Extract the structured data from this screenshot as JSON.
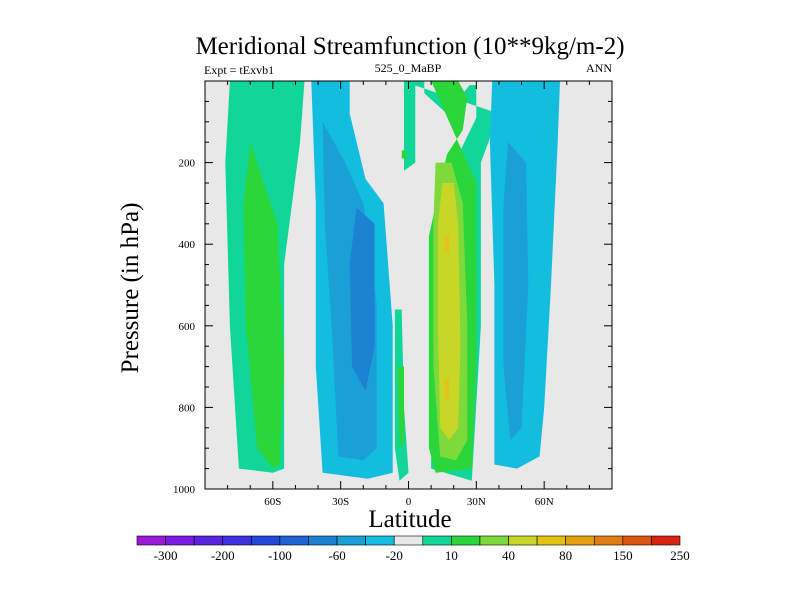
{
  "chart_data": {
    "type": "contour",
    "title": "Meridional Streamfunction (10**9kg/m-2)",
    "subtitle_left": "Expt = tExvb1",
    "subtitle_center": "525_0_MaBP",
    "subtitle_right": "ANN",
    "xlabel": "Latitude",
    "ylabel": "Pressure (in hPa)",
    "xlim": [
      -90,
      90
    ],
    "ylim": [
      1000,
      0
    ],
    "x_ticks": [
      {
        "value": -60,
        "label": "60S"
      },
      {
        "value": -30,
        "label": "30S"
      },
      {
        "value": 0,
        "label": "0"
      },
      {
        "value": 30,
        "label": "30N"
      },
      {
        "value": 60,
        "label": "60N"
      }
    ],
    "y_ticks": [
      {
        "value": 200,
        "label": "200"
      },
      {
        "value": 400,
        "label": "400"
      },
      {
        "value": 600,
        "label": "600"
      },
      {
        "value": 800,
        "label": "800"
      },
      {
        "value": 1000,
        "label": "1000"
      }
    ],
    "background_color": "#e8e8e8",
    "colorbar": {
      "colors": [
        "#9b19d8",
        "#7a1ae4",
        "#5a23e2",
        "#3a30df",
        "#2346db",
        "#1e63d6",
        "#1c82d2",
        "#1aa0d6",
        "#12bde0",
        "#e8e8e8",
        "#10d69a",
        "#2bd63b",
        "#7ed93a",
        "#c8d628",
        "#e3c413",
        "#e5a012",
        "#e17c12",
        "#dc5510",
        "#d9230d"
      ],
      "labels": [
        {
          "index": 1,
          "label": "-300"
        },
        {
          "index": 3,
          "label": "-200"
        },
        {
          "index": 5,
          "label": "-100"
        },
        {
          "index": 7,
          "label": "-60"
        },
        {
          "index": 9,
          "label": "-20"
        },
        {
          "index": 11,
          "label": "10"
        },
        {
          "index": 13,
          "label": "40"
        },
        {
          "index": 15,
          "label": "80"
        },
        {
          "index": 17,
          "label": "150"
        },
        {
          "index": 19,
          "label": "250"
        }
      ]
    },
    "cells": [
      {
        "name": "sh-ferrel-outer",
        "level": 10,
        "points": [
          [
            -79,
            0
          ],
          [
            -46,
            0
          ],
          [
            -48,
            150
          ],
          [
            -55,
            450
          ],
          [
            -55,
            950
          ],
          [
            -60,
            960
          ],
          [
            -75,
            950
          ],
          [
            -79,
            600
          ],
          [
            -81,
            200
          ]
        ]
      },
      {
        "name": "sh-ferrel-core",
        "level": 11,
        "points": [
          [
            -70,
            150
          ],
          [
            -58,
            350
          ],
          [
            -55,
            700
          ],
          [
            -57,
            940
          ],
          [
            -60,
            950
          ],
          [
            -67,
            900
          ],
          [
            -72,
            600
          ],
          [
            -73,
            300
          ]
        ]
      },
      {
        "name": "sh-hadley-outer",
        "level": 8,
        "points": [
          [
            -43,
            0
          ],
          [
            -26,
            0
          ],
          [
            -26,
            80
          ],
          [
            -19,
            240
          ],
          [
            -11,
            300
          ],
          [
            -7,
            600
          ],
          [
            -7,
            960
          ],
          [
            -18,
            975
          ],
          [
            -38,
            960
          ],
          [
            -41,
            700
          ],
          [
            -41,
            300
          ]
        ]
      },
      {
        "name": "sh-hadley-mid",
        "level": 7,
        "points": [
          [
            -38,
            100
          ],
          [
            -28,
            200
          ],
          [
            -20,
            300
          ],
          [
            -14,
            550
          ],
          [
            -14,
            900
          ],
          [
            -20,
            930
          ],
          [
            -31,
            920
          ],
          [
            -34,
            600
          ],
          [
            -37,
            350
          ]
        ]
      },
      {
        "name": "sh-hadley-core",
        "level": 6,
        "points": [
          [
            -23,
            310
          ],
          [
            -15,
            350
          ],
          [
            -15,
            650
          ],
          [
            -19,
            760
          ],
          [
            -25,
            700
          ],
          [
            -26,
            450
          ]
        ]
      },
      {
        "name": "equatorial-tongue",
        "level": 10,
        "points": [
          [
            -2,
            0
          ],
          [
            3,
            0
          ],
          [
            3,
            200
          ],
          [
            -2,
            220
          ]
        ]
      },
      {
        "name": "equatorial-near-surface",
        "level": 10,
        "points": [
          [
            -6,
            560
          ],
          [
            -3,
            560
          ],
          [
            -2,
            800
          ],
          [
            0,
            960
          ],
          [
            -4,
            980
          ],
          [
            -6,
            900
          ]
        ]
      },
      {
        "name": "equatorial-near-surface-core",
        "level": 11,
        "points": [
          [
            -5,
            700
          ],
          [
            -2,
            700
          ],
          [
            -2,
            880
          ],
          [
            -4,
            900
          ]
        ]
      },
      {
        "name": "equatorial-dot",
        "level": 11,
        "points": [
          [
            -3,
            170
          ],
          [
            -1,
            170
          ],
          [
            -1,
            190
          ],
          [
            -3,
            190
          ]
        ]
      },
      {
        "name": "nh-hadley-outer",
        "level": 10,
        "points": [
          [
            -3,
            0
          ],
          [
            7,
            0
          ],
          [
            7,
            30
          ],
          [
            17,
            80
          ],
          [
            27,
            10
          ],
          [
            30,
            10
          ],
          [
            30,
            90
          ],
          [
            23,
            170
          ],
          [
            14,
            250
          ],
          [
            10,
            400
          ],
          [
            10,
            950
          ],
          [
            28,
            980
          ],
          [
            32,
            600
          ],
          [
            32,
            200
          ],
          [
            40,
            80
          ]
        ]
      },
      {
        "name": "nh-hadley-mid",
        "level": 11,
        "points": [
          [
            10,
            0
          ],
          [
            22,
            0
          ],
          [
            26,
            40
          ],
          [
            24,
            120
          ],
          [
            17,
            180
          ],
          [
            9,
            380
          ],
          [
            9,
            900
          ],
          [
            12,
            960
          ],
          [
            28,
            950
          ],
          [
            30,
            700
          ],
          [
            30,
            250
          ]
        ]
      },
      {
        "name": "nh-hadley-inner",
        "level": 12,
        "points": [
          [
            12,
            200
          ],
          [
            19,
            200
          ],
          [
            24,
            300
          ],
          [
            26,
            600
          ],
          [
            26,
            880
          ],
          [
            21,
            930
          ],
          [
            14,
            920
          ],
          [
            11,
            700
          ],
          [
            11,
            350
          ]
        ]
      },
      {
        "name": "nh-hadley-core",
        "level": 13,
        "points": [
          [
            15,
            250
          ],
          [
            20,
            250
          ],
          [
            22,
            350
          ],
          [
            23,
            650
          ],
          [
            22,
            850
          ],
          [
            18,
            880
          ],
          [
            14,
            850
          ],
          [
            13,
            600
          ],
          [
            13,
            350
          ]
        ]
      },
      {
        "name": "nh-hadley-peak",
        "level": 14,
        "points": [
          [
            16,
            380
          ],
          [
            18,
            380
          ],
          [
            18,
            420
          ],
          [
            16,
            420
          ]
        ]
      },
      {
        "name": "nh-hadley-peak-low",
        "level": 14,
        "points": [
          [
            16,
            730
          ],
          [
            18,
            730
          ],
          [
            18,
            780
          ],
          [
            16,
            780
          ]
        ]
      },
      {
        "name": "nh-ferrel-outer",
        "level": 8,
        "points": [
          [
            37,
            0
          ],
          [
            67,
            0
          ],
          [
            66,
            150
          ],
          [
            63,
            500
          ],
          [
            60,
            800
          ],
          [
            58,
            920
          ],
          [
            48,
            950
          ],
          [
            38,
            940
          ],
          [
            38,
            500
          ],
          [
            36,
            150
          ]
        ]
      },
      {
        "name": "nh-ferrel-core",
        "level": 7,
        "points": [
          [
            44,
            150
          ],
          [
            52,
            200
          ],
          [
            53,
            500
          ],
          [
            50,
            850
          ],
          [
            45,
            880
          ],
          [
            42,
            700
          ],
          [
            42,
            300
          ]
        ]
      }
    ]
  }
}
